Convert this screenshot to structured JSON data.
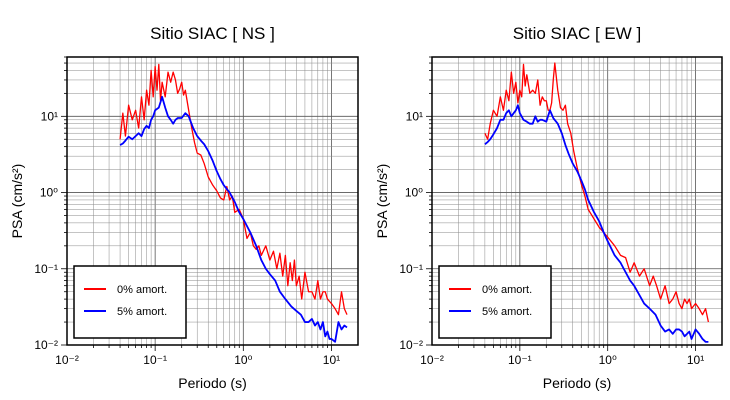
{
  "chart_data": [
    {
      "type": "line",
      "title": "Sitio SIAC [ NS ]",
      "xlabel": "Periodo (s)",
      "ylabel": "PSA (cm/s²)",
      "xscale": "log",
      "yscale": "log",
      "xlim": [
        0.01,
        20
      ],
      "ylim": [
        0.01,
        60
      ],
      "grid": true,
      "legend_position": "bottom-left",
      "x_tick_labels": [
        "10⁻²",
        "10⁻¹",
        "10⁰",
        "10¹"
      ],
      "y_tick_labels": [
        "10⁻²",
        "10⁻¹",
        "10⁰",
        "10¹"
      ],
      "series": [
        {
          "name": "0% amort.",
          "color": "#ff0000",
          "x": [
            0.04,
            0.043,
            0.046,
            0.05,
            0.055,
            0.06,
            0.065,
            0.07,
            0.075,
            0.08,
            0.085,
            0.09,
            0.095,
            0.1,
            0.105,
            0.11,
            0.115,
            0.12,
            0.13,
            0.14,
            0.15,
            0.16,
            0.17,
            0.18,
            0.19,
            0.2,
            0.21,
            0.22,
            0.24,
            0.26,
            0.28,
            0.3,
            0.33,
            0.36,
            0.4,
            0.45,
            0.5,
            0.55,
            0.6,
            0.65,
            0.7,
            0.75,
            0.8,
            0.9,
            1.0,
            1.1,
            1.2,
            1.3,
            1.4,
            1.5,
            1.6,
            1.8,
            2.0,
            2.2,
            2.4,
            2.6,
            2.8,
            3.0,
            3.2,
            3.4,
            3.6,
            3.8,
            4.0,
            4.3,
            4.6,
            5.0,
            5.5,
            6.0,
            6.5,
            7.0,
            7.5,
            8.0,
            8.5,
            9.0,
            10.0,
            11.0,
            12.0,
            13.0,
            14.0,
            15.0
          ],
          "y": [
            5,
            11,
            5.5,
            14,
            9,
            12,
            7,
            18,
            9,
            22,
            14,
            40,
            18,
            45,
            22,
            48,
            16,
            28,
            18,
            38,
            28,
            38,
            30,
            20,
            23,
            28,
            19,
            22,
            12,
            7,
            4.5,
            3.3,
            3.1,
            2.4,
            1.6,
            1.25,
            1.05,
            0.85,
            0.8,
            1.2,
            0.8,
            0.9,
            0.55,
            0.6,
            0.45,
            0.25,
            0.3,
            0.2,
            0.18,
            0.2,
            0.15,
            0.2,
            0.13,
            0.17,
            0.1,
            0.16,
            0.08,
            0.15,
            0.06,
            0.12,
            0.07,
            0.13,
            0.06,
            0.08,
            0.04,
            0.09,
            0.05,
            0.05,
            0.04,
            0.07,
            0.04,
            0.05,
            0.05,
            0.04,
            0.035,
            0.03,
            0.025,
            0.05,
            0.03,
            0.025
          ]
        },
        {
          "name": "5% amort.",
          "color": "#0000ff",
          "x": [
            0.04,
            0.043,
            0.046,
            0.05,
            0.055,
            0.06,
            0.065,
            0.07,
            0.075,
            0.08,
            0.085,
            0.09,
            0.095,
            0.1,
            0.11,
            0.12,
            0.13,
            0.14,
            0.15,
            0.16,
            0.17,
            0.18,
            0.2,
            0.22,
            0.24,
            0.27,
            0.3,
            0.33,
            0.36,
            0.4,
            0.45,
            0.5,
            0.55,
            0.6,
            0.7,
            0.8,
            0.9,
            1.0,
            1.2,
            1.4,
            1.6,
            1.8,
            2.0,
            2.3,
            2.6,
            3.0,
            3.5,
            4.0,
            4.5,
            5.0,
            5.5,
            6.0,
            6.5,
            7.0,
            7.5,
            8.0,
            8.5,
            9.0,
            9.5,
            10.0,
            11.0,
            12.0,
            13.0,
            14.0,
            15.0
          ],
          "y": [
            4.2,
            4.4,
            4.8,
            5.4,
            5,
            5.5,
            6,
            5.5,
            6.8,
            7.5,
            7,
            9,
            10,
            12,
            13,
            18,
            13,
            10,
            9,
            8,
            9,
            9.5,
            9.5,
            11,
            10,
            7,
            5.5,
            4.8,
            4.3,
            3.5,
            2.6,
            1.9,
            1.5,
            1.25,
            1.0,
            0.75,
            0.55,
            0.45,
            0.3,
            0.2,
            0.13,
            0.1,
            0.085,
            0.07,
            0.05,
            0.04,
            0.032,
            0.028,
            0.025,
            0.02,
            0.02,
            0.022,
            0.018,
            0.02,
            0.016,
            0.02,
            0.013,
            0.015,
            0.012,
            0.012,
            0.011,
            0.02,
            0.016,
            0.018,
            0.017
          ]
        }
      ]
    },
    {
      "type": "line",
      "title": "Sitio SIAC [ EW ]",
      "xlabel": "Periodo (s)",
      "ylabel": "PSA (cm/s²)",
      "xscale": "log",
      "yscale": "log",
      "xlim": [
        0.01,
        20
      ],
      "ylim": [
        0.01,
        60
      ],
      "grid": true,
      "legend_position": "bottom-left",
      "x_tick_labels": [
        "10⁻²",
        "10⁻¹",
        "10⁰",
        "10¹"
      ],
      "y_tick_labels": [
        "10⁻²",
        "10⁻¹",
        "10⁰",
        "10¹"
      ],
      "series": [
        {
          "name": "0% amort.",
          "color": "#ff0000",
          "x": [
            0.04,
            0.043,
            0.046,
            0.05,
            0.055,
            0.06,
            0.065,
            0.07,
            0.075,
            0.08,
            0.085,
            0.09,
            0.095,
            0.1,
            0.105,
            0.11,
            0.115,
            0.12,
            0.13,
            0.14,
            0.15,
            0.16,
            0.17,
            0.18,
            0.19,
            0.2,
            0.21,
            0.22,
            0.23,
            0.24,
            0.25,
            0.27,
            0.29,
            0.31,
            0.33,
            0.35,
            0.38,
            0.41,
            0.45,
            0.5,
            0.55,
            0.6,
            0.7,
            0.8,
            0.9,
            1.0,
            1.2,
            1.4,
            1.6,
            1.8,
            2.0,
            2.3,
            2.6,
            3.0,
            3.3,
            3.6,
            4.0,
            4.5,
            5.0,
            5.5,
            6.0,
            6.5,
            7.0,
            7.5,
            8.0,
            8.5,
            9.0,
            10.0,
            11.0,
            12.0,
            13.0,
            14.0
          ],
          "y": [
            6,
            5,
            8,
            12,
            10,
            18,
            12,
            22,
            16,
            38,
            20,
            28,
            15,
            22,
            18,
            48,
            25,
            35,
            20,
            22,
            20,
            30,
            14,
            18,
            16,
            16,
            12,
            12,
            15,
            30,
            50,
            22,
            13,
            12,
            14,
            8,
            6,
            3.5,
            2.1,
            1.3,
            0.9,
            0.6,
            0.45,
            0.35,
            0.3,
            0.26,
            0.2,
            0.15,
            0.14,
            0.09,
            0.12,
            0.08,
            0.1,
            0.06,
            0.08,
            0.06,
            0.04,
            0.06,
            0.035,
            0.04,
            0.05,
            0.035,
            0.03,
            0.04,
            0.035,
            0.04,
            0.03,
            0.035,
            0.03,
            0.025,
            0.03,
            0.02
          ]
        },
        {
          "name": "5% amort.",
          "color": "#0000ff",
          "x": [
            0.04,
            0.043,
            0.046,
            0.05,
            0.055,
            0.06,
            0.065,
            0.07,
            0.075,
            0.08,
            0.085,
            0.09,
            0.095,
            0.1,
            0.11,
            0.12,
            0.13,
            0.14,
            0.15,
            0.16,
            0.17,
            0.18,
            0.2,
            0.22,
            0.24,
            0.27,
            0.3,
            0.33,
            0.36,
            0.4,
            0.45,
            0.5,
            0.55,
            0.6,
            0.7,
            0.8,
            0.9,
            1.0,
            1.2,
            1.4,
            1.6,
            1.8,
            2.0,
            2.3,
            2.6,
            3.0,
            3.5,
            4.0,
            4.5,
            5.0,
            5.5,
            6.0,
            6.5,
            7.0,
            7.5,
            8.0,
            8.5,
            9.0,
            10.0,
            11.0,
            12.0,
            13.0,
            14.0
          ],
          "y": [
            4.3,
            4.6,
            5,
            5.8,
            7,
            9,
            9,
            11,
            12,
            10,
            11,
            12,
            14,
            11,
            9,
            8.5,
            8,
            8,
            10,
            8.5,
            9,
            9,
            8.5,
            12,
            9.5,
            8,
            6,
            4.2,
            3.2,
            2.4,
            1.9,
            1.45,
            1.1,
            0.8,
            0.55,
            0.42,
            0.3,
            0.23,
            0.15,
            0.12,
            0.09,
            0.07,
            0.06,
            0.045,
            0.035,
            0.03,
            0.025,
            0.018,
            0.015,
            0.016,
            0.014,
            0.016,
            0.016,
            0.015,
            0.013,
            0.014,
            0.015,
            0.012,
            0.016,
            0.014,
            0.012,
            0.011,
            0.011
          ]
        }
      ]
    }
  ]
}
